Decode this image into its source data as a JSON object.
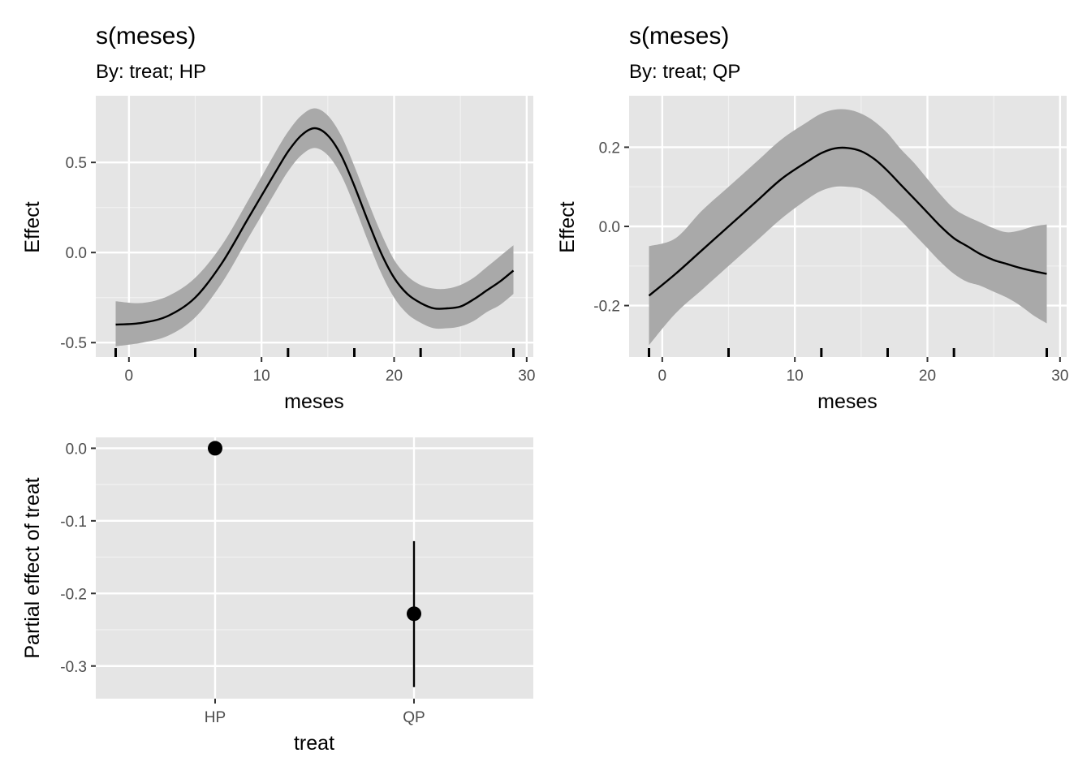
{
  "chart_data": [
    {
      "type": "line",
      "title": "s(meses)",
      "subtitle": "By: treat; HP",
      "xlabel": "meses",
      "ylabel": "Effect",
      "xlim": [
        -2.5,
        30.5
      ],
      "ylim": [
        -0.58,
        0.87
      ],
      "xticks": [
        0,
        10,
        20,
        30
      ],
      "yticks": [
        -0.5,
        0.0,
        0.5
      ],
      "ytick_labels": [
        "-0.5",
        "0.0",
        "0.5"
      ],
      "x": [
        -1,
        1,
        3,
        5,
        7,
        9,
        11,
        12,
        13,
        14,
        15,
        16,
        17,
        18,
        19,
        20,
        21,
        22,
        23,
        24,
        25,
        26,
        27,
        28,
        29
      ],
      "y": [
        -0.4,
        -0.39,
        -0.35,
        -0.25,
        -0.06,
        0.19,
        0.44,
        0.56,
        0.65,
        0.69,
        0.65,
        0.54,
        0.37,
        0.18,
        0.0,
        -0.14,
        -0.23,
        -0.28,
        -0.31,
        -0.31,
        -0.3,
        -0.26,
        -0.21,
        -0.16,
        -0.1
      ],
      "upper": [
        -0.27,
        -0.28,
        -0.24,
        -0.14,
        0.04,
        0.29,
        0.55,
        0.67,
        0.76,
        0.8,
        0.76,
        0.65,
        0.48,
        0.29,
        0.11,
        -0.04,
        -0.13,
        -0.18,
        -0.2,
        -0.2,
        -0.18,
        -0.14,
        -0.08,
        -0.02,
        0.04
      ],
      "lower": [
        -0.52,
        -0.5,
        -0.46,
        -0.36,
        -0.17,
        0.08,
        0.33,
        0.45,
        0.54,
        0.58,
        0.54,
        0.43,
        0.26,
        0.07,
        -0.11,
        -0.25,
        -0.34,
        -0.39,
        -0.42,
        -0.42,
        -0.41,
        -0.38,
        -0.33,
        -0.29,
        -0.23
      ],
      "rug": [
        -1,
        5,
        12,
        17,
        22,
        29
      ],
      "band_color": "#a9a9a9",
      "line_color": "#000000",
      "panel_color": "#e5e5e5",
      "grid": true
    },
    {
      "type": "line",
      "title": "s(meses)",
      "subtitle": "By: treat; QP",
      "xlabel": "meses",
      "ylabel": "Effect",
      "xlim": [
        -2.5,
        30.5
      ],
      "ylim": [
        -0.33,
        0.33
      ],
      "xticks": [
        0,
        10,
        20,
        30
      ],
      "yticks": [
        -0.2,
        0.0,
        0.2
      ],
      "ytick_labels": [
        "-0.2",
        "0.0",
        "0.2"
      ],
      "x": [
        -1,
        1,
        3,
        5,
        7,
        9,
        11,
        12,
        13,
        14,
        15,
        16,
        17,
        18,
        19,
        20,
        21,
        22,
        23,
        24,
        25,
        26,
        27,
        28,
        29
      ],
      "y": [
        -0.175,
        -0.12,
        -0.06,
        0.0,
        0.06,
        0.12,
        0.165,
        0.185,
        0.197,
        0.198,
        0.19,
        0.17,
        0.14,
        0.105,
        0.07,
        0.035,
        0.0,
        -0.03,
        -0.05,
        -0.07,
        -0.085,
        -0.095,
        -0.105,
        -0.113,
        -0.12
      ],
      "upper": [
        -0.05,
        -0.03,
        0.04,
        0.1,
        0.16,
        0.22,
        0.265,
        0.285,
        0.295,
        0.295,
        0.285,
        0.265,
        0.235,
        0.195,
        0.16,
        0.12,
        0.08,
        0.045,
        0.025,
        0.01,
        -0.005,
        -0.015,
        -0.01,
        0.0,
        0.005
      ],
      "lower": [
        -0.3,
        -0.22,
        -0.16,
        -0.1,
        -0.04,
        0.02,
        0.07,
        0.09,
        0.1,
        0.1,
        0.095,
        0.075,
        0.045,
        0.015,
        -0.02,
        -0.055,
        -0.09,
        -0.12,
        -0.14,
        -0.15,
        -0.165,
        -0.18,
        -0.2,
        -0.225,
        -0.245
      ],
      "rug": [
        -1,
        5,
        12,
        17,
        22,
        29
      ],
      "band_color": "#a9a9a9",
      "line_color": "#000000",
      "panel_color": "#e5e5e5",
      "grid": true
    },
    {
      "type": "scatter",
      "title": "",
      "xlabel": "treat",
      "ylabel": "Partial effect of treat",
      "categories": [
        "HP",
        "QP"
      ],
      "values": [
        0.0,
        -0.228
      ],
      "ci_lower": [
        null,
        -0.329
      ],
      "ci_upper": [
        null,
        -0.128
      ],
      "ylim": [
        -0.345,
        0.015
      ],
      "yticks": [
        -0.3,
        -0.2,
        -0.1,
        0.0
      ],
      "ytick_labels": [
        "-0.3",
        "-0.2",
        "-0.1",
        "0.0"
      ],
      "point_color": "#000000",
      "panel_color": "#e5e5e5",
      "grid": true
    }
  ]
}
